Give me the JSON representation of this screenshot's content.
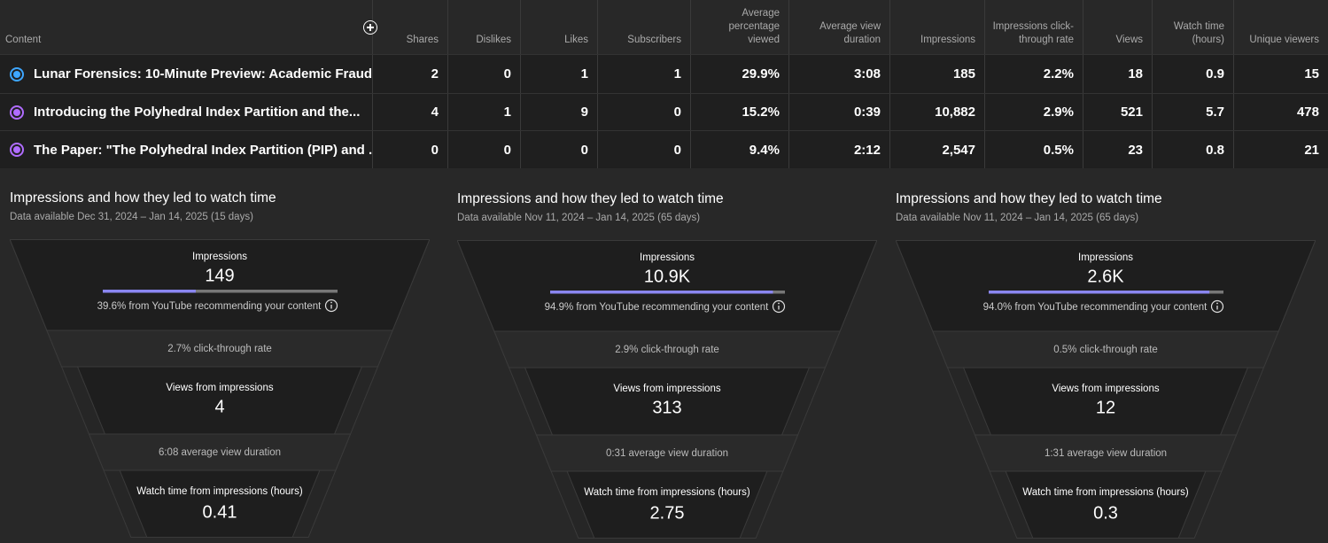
{
  "table": {
    "headers": [
      "Content",
      "Shares",
      "Dislikes",
      "Likes",
      "Subscribers",
      "Average percentage viewed",
      "Average view duration",
      "Impressions",
      "Impressions click-through rate",
      "Views",
      "Watch time (hours)",
      "Unique viewers"
    ],
    "rows": [
      [
        "Lunar Forensics: 10-Minute Preview: Academic Fraud ...",
        "2",
        "0",
        "1",
        "1",
        "29.9%",
        "3:08",
        "185",
        "2.2%",
        "18",
        "0.9",
        "15"
      ],
      [
        "Introducing the Polyhedral Index Partition and the...",
        "4",
        "1",
        "9",
        "0",
        "15.2%",
        "0:39",
        "10,882",
        "2.9%",
        "521",
        "5.7",
        "478"
      ],
      [
        "The Paper: \"The Polyhedral Index Partition (PIP) and ...",
        "0",
        "0",
        "0",
        "0",
        "9.4%",
        "2:12",
        "2,547",
        "0.5%",
        "23",
        "0.8",
        "21"
      ]
    ],
    "row_colors": [
      "#3ea6ff",
      "#b06cff",
      "#b06cff"
    ]
  },
  "funnels": [
    {
      "title": "Impressions and how they led to watch time",
      "subtitle": "Data available Dec 31, 2024 – Jan 14, 2025 (15 days)",
      "impressions_label": "Impressions",
      "impressions": "149",
      "recommended": {
        "value": 39.6,
        "label": "39.6% from YouTube recommending your content"
      },
      "ctr": "2.7% click-through rate",
      "views_label": "Views from impressions",
      "views": "4",
      "duration": "6:08 average view duration",
      "watch_label": "Watch time from impressions (hours)",
      "watch": "0.41"
    },
    {
      "title": "Impressions and how they led to watch time",
      "subtitle": "Data available Nov 11, 2024 – Jan 14, 2025 (65 days)",
      "impressions_label": "Impressions",
      "impressions": "10.9K",
      "recommended": {
        "value": 94.9,
        "label": "94.9% from YouTube recommending your content"
      },
      "ctr": "2.9% click-through rate",
      "views_label": "Views from impressions",
      "views": "313",
      "duration": "0:31 average view duration",
      "watch_label": "Watch time from impressions (hours)",
      "watch": "2.75"
    },
    {
      "title": "Impressions and how they led to watch time",
      "subtitle": "Data available Nov 11, 2024 – Jan 14, 2025 (65 days)",
      "impressions_label": "Impressions",
      "impressions": "2.6K",
      "recommended": {
        "value": 94.0,
        "label": "94.0% from YouTube recommending your content"
      },
      "ctr": "0.5% click-through rate",
      "views_label": "Views from impressions",
      "views": "12",
      "duration": "1:31 average view duration",
      "watch_label": "Watch time from impressions (hours)",
      "watch": "0.3"
    }
  ]
}
